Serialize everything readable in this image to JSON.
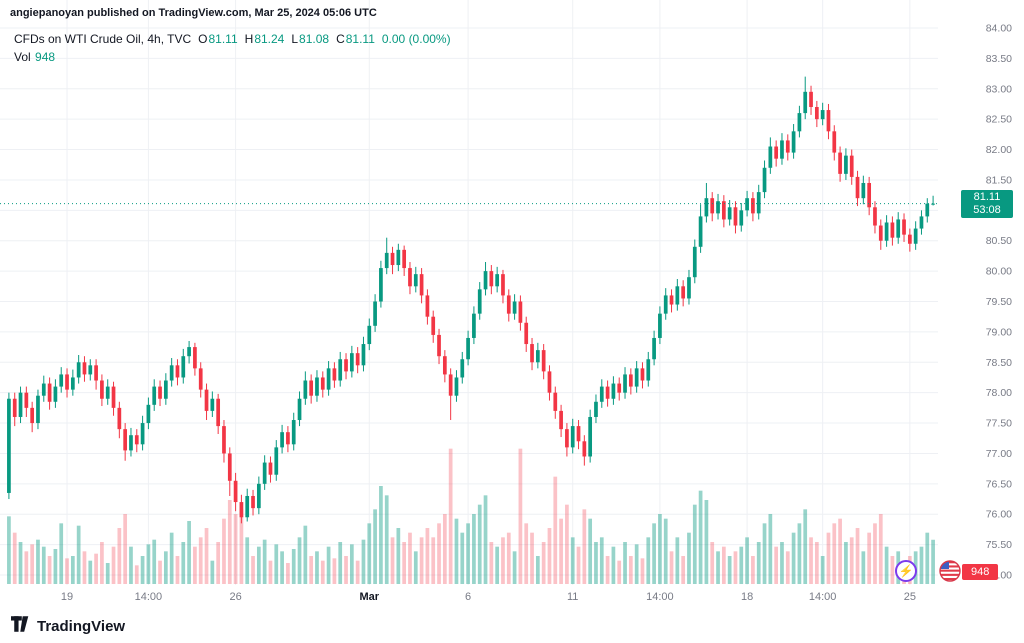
{
  "attribution": "angiepanoyan published on TradingView.com, Mar 25, 2024 05:06 UTC",
  "legend": {
    "title": "CFDs on WTI Crude Oil, 4h, TVC",
    "o_label": "O",
    "o_value": "81.11",
    "h_label": "H",
    "h_value": "81.24",
    "l_label": "L",
    "l_value": "81.08",
    "c_label": "C",
    "c_value": "81.11",
    "change": "0.00 (0.00%)",
    "vol_label": "Vol",
    "vol_value": "948"
  },
  "price_badge": {
    "price": "81.11",
    "countdown": "53:08"
  },
  "volume_badge": {
    "value": "948"
  },
  "footer": {
    "brand": "TradingView"
  },
  "icons": {
    "boost": "lightning-bolt",
    "flag": "us-flag-circle"
  },
  "colors": {
    "up": "#089981",
    "down": "#f23645",
    "text": "#131722",
    "axis_text": "#787b86",
    "grid": "#eef0f4",
    "purple": "#7c3aed",
    "badge_red": "#f23645"
  },
  "chart_data": {
    "type": "candlestick",
    "symbol": "CFDs on WTI Crude Oil",
    "interval": "4h",
    "exchange": "TVC",
    "last_price": 81.11,
    "countdown": "53:08",
    "last_volume": 948,
    "ylim": [
      75.0,
      84.0
    ],
    "price_axis_labels": [
      "84.00",
      "83.50",
      "83.00",
      "82.50",
      "82.00",
      "81.50",
      "81.00",
      "80.50",
      "80.00",
      "79.50",
      "79.00",
      "78.50",
      "78.00",
      "77.50",
      "77.00",
      "76.50",
      "76.00",
      "75.50",
      "75.00"
    ],
    "time_axis": [
      {
        "label": "19",
        "index": 10
      },
      {
        "label": "14:00",
        "index": 24
      },
      {
        "label": "26",
        "index": 39
      },
      {
        "label": "Mar",
        "index": 62,
        "bold": true
      },
      {
        "label": "6",
        "index": 79
      },
      {
        "label": "11",
        "index": 97
      },
      {
        "label": "14:00",
        "index": 112
      },
      {
        "label": "18",
        "index": 127
      },
      {
        "label": "14:00",
        "index": 140
      },
      {
        "label": "25",
        "index": 155
      }
    ],
    "up_color": "#089981",
    "down_color": "#f23645",
    "volume_up_color": "rgba(8,153,129,0.42)",
    "volume_down_color": "rgba(242,54,69,0.30)",
    "candles": [
      [
        76.35,
        78.0,
        76.25,
        77.9,
        1450
      ],
      [
        77.9,
        78.0,
        77.45,
        77.6,
        1100
      ],
      [
        77.6,
        78.1,
        77.5,
        78.0,
        900
      ],
      [
        78.0,
        78.1,
        77.6,
        77.75,
        700
      ],
      [
        77.75,
        77.85,
        77.35,
        77.5,
        850
      ],
      [
        77.5,
        78.05,
        77.4,
        77.95,
        950
      ],
      [
        77.95,
        78.28,
        77.85,
        78.15,
        800
      ],
      [
        78.15,
        78.25,
        77.72,
        77.85,
        600
      ],
      [
        77.85,
        78.22,
        77.75,
        78.1,
        750
      ],
      [
        78.1,
        78.42,
        78.0,
        78.3,
        1300
      ],
      [
        78.3,
        78.4,
        77.92,
        78.05,
        550
      ],
      [
        78.05,
        78.38,
        77.95,
        78.25,
        600
      ],
      [
        78.25,
        78.62,
        78.15,
        78.5,
        1250
      ],
      [
        78.5,
        78.6,
        78.18,
        78.3,
        700
      ],
      [
        78.3,
        78.55,
        78.2,
        78.45,
        500
      ],
      [
        78.45,
        78.55,
        78.05,
        78.2,
        650
      ],
      [
        78.2,
        78.3,
        77.78,
        77.9,
        900
      ],
      [
        77.9,
        78.22,
        77.8,
        78.1,
        450
      ],
      [
        78.1,
        78.18,
        77.62,
        77.75,
        800
      ],
      [
        77.75,
        77.85,
        77.25,
        77.4,
        1200
      ],
      [
        77.4,
        77.5,
        76.88,
        77.05,
        1500
      ],
      [
        77.05,
        77.42,
        76.95,
        77.3,
        800
      ],
      [
        77.3,
        77.4,
        77.02,
        77.15,
        400
      ],
      [
        77.15,
        77.62,
        77.05,
        77.5,
        600
      ],
      [
        77.5,
        77.92,
        77.4,
        77.8,
        850
      ],
      [
        77.8,
        78.22,
        77.7,
        78.1,
        950
      ],
      [
        78.1,
        78.2,
        77.78,
        77.9,
        500
      ],
      [
        77.9,
        78.32,
        77.8,
        78.2,
        700
      ],
      [
        78.2,
        78.57,
        78.1,
        78.45,
        1100
      ],
      [
        78.45,
        78.55,
        78.12,
        78.25,
        600
      ],
      [
        78.25,
        78.72,
        78.15,
        78.6,
        900
      ],
      [
        78.6,
        78.85,
        78.48,
        78.75,
        1350
      ],
      [
        78.75,
        78.82,
        78.28,
        78.4,
        800
      ],
      [
        78.4,
        78.5,
        77.92,
        78.05,
        1000
      ],
      [
        78.05,
        78.15,
        77.55,
        77.7,
        1200
      ],
      [
        77.7,
        78.02,
        77.6,
        77.9,
        500
      ],
      [
        77.9,
        77.98,
        77.32,
        77.45,
        900
      ],
      [
        77.45,
        77.55,
        76.85,
        77.0,
        1400
      ],
      [
        77.0,
        77.1,
        76.3,
        76.55,
        1800
      ],
      [
        76.55,
        76.68,
        76.05,
        76.2,
        1500
      ],
      [
        76.2,
        76.32,
        75.85,
        75.95,
        1600
      ],
      [
        75.95,
        76.42,
        75.88,
        76.3,
        1000
      ],
      [
        76.3,
        76.4,
        75.98,
        76.1,
        600
      ],
      [
        76.1,
        76.62,
        76.0,
        76.5,
        800
      ],
      [
        76.5,
        76.97,
        76.4,
        76.85,
        950
      ],
      [
        76.85,
        76.95,
        76.52,
        76.65,
        500
      ],
      [
        76.65,
        77.22,
        76.55,
        77.1,
        850
      ],
      [
        77.1,
        77.47,
        77.0,
        77.35,
        700
      ],
      [
        77.35,
        77.45,
        77.02,
        77.15,
        450
      ],
      [
        77.15,
        77.67,
        77.05,
        77.55,
        750
      ],
      [
        77.55,
        78.02,
        77.45,
        77.9,
        1000
      ],
      [
        77.9,
        78.35,
        77.8,
        78.2,
        1250
      ],
      [
        78.2,
        78.3,
        77.82,
        77.95,
        600
      ],
      [
        77.95,
        78.37,
        77.85,
        78.25,
        700
      ],
      [
        78.25,
        78.35,
        77.92,
        78.05,
        500
      ],
      [
        78.05,
        78.52,
        77.95,
        78.4,
        800
      ],
      [
        78.4,
        78.5,
        78.08,
        78.2,
        550
      ],
      [
        78.2,
        78.67,
        78.1,
        78.55,
        900
      ],
      [
        78.55,
        78.65,
        78.22,
        78.35,
        600
      ],
      [
        78.35,
        78.77,
        78.25,
        78.65,
        850
      ],
      [
        78.65,
        78.75,
        78.32,
        78.45,
        500
      ],
      [
        78.45,
        78.92,
        78.35,
        78.8,
        950
      ],
      [
        78.8,
        79.22,
        78.7,
        79.1,
        1300
      ],
      [
        79.1,
        79.62,
        79.0,
        79.5,
        1600
      ],
      [
        79.5,
        80.17,
        79.4,
        80.05,
        2100
      ],
      [
        80.05,
        80.55,
        79.95,
        80.3,
        1900
      ],
      [
        80.3,
        80.4,
        79.95,
        80.1,
        1000
      ],
      [
        80.1,
        80.45,
        80.0,
        80.35,
        1200
      ],
      [
        80.35,
        80.42,
        79.92,
        80.05,
        900
      ],
      [
        80.05,
        80.15,
        79.62,
        79.75,
        1100
      ],
      [
        79.75,
        80.07,
        79.65,
        79.95,
        700
      ],
      [
        79.95,
        80.05,
        79.47,
        79.6,
        1000
      ],
      [
        79.6,
        79.7,
        79.12,
        79.25,
        1200
      ],
      [
        79.25,
        79.35,
        78.82,
        78.95,
        1000
      ],
      [
        78.95,
        79.05,
        78.47,
        78.6,
        1300
      ],
      [
        78.6,
        78.7,
        78.17,
        78.3,
        1500
      ],
      [
        78.3,
        78.4,
        77.55,
        77.95,
        2900
      ],
      [
        77.95,
        78.37,
        77.85,
        78.25,
        1400
      ],
      [
        78.25,
        78.67,
        78.15,
        78.55,
        1100
      ],
      [
        78.55,
        79.02,
        78.45,
        78.9,
        1300
      ],
      [
        78.9,
        79.42,
        78.8,
        79.3,
        1500
      ],
      [
        79.3,
        79.82,
        79.2,
        79.7,
        1700
      ],
      [
        79.7,
        80.15,
        79.6,
        80.0,
        1900
      ],
      [
        80.0,
        80.1,
        79.62,
        79.75,
        900
      ],
      [
        79.75,
        80.07,
        79.65,
        79.95,
        800
      ],
      [
        79.95,
        80.02,
        79.47,
        79.6,
        1000
      ],
      [
        79.6,
        79.7,
        79.17,
        79.3,
        1100
      ],
      [
        79.3,
        79.62,
        79.2,
        79.5,
        700
      ],
      [
        79.5,
        79.6,
        79.02,
        79.15,
        2900
      ],
      [
        79.15,
        79.25,
        78.67,
        78.8,
        1300
      ],
      [
        78.8,
        78.9,
        78.37,
        78.5,
        1100
      ],
      [
        78.5,
        78.82,
        78.4,
        78.7,
        600
      ],
      [
        78.7,
        78.8,
        78.22,
        78.35,
        900
      ],
      [
        78.35,
        78.45,
        77.87,
        78.0,
        1200
      ],
      [
        78.0,
        78.1,
        77.57,
        77.7,
        2300
      ],
      [
        77.7,
        77.8,
        77.27,
        77.4,
        1400
      ],
      [
        77.4,
        77.5,
        76.95,
        77.1,
        1700
      ],
      [
        77.1,
        77.57,
        77.0,
        77.45,
        1000
      ],
      [
        77.45,
        77.55,
        77.07,
        77.2,
        800
      ],
      [
        77.2,
        77.3,
        76.8,
        76.95,
        1600
      ],
      [
        76.95,
        77.72,
        76.85,
        77.6,
        1400
      ],
      [
        77.6,
        77.97,
        77.5,
        77.85,
        900
      ],
      [
        77.85,
        78.22,
        77.75,
        78.1,
        1000
      ],
      [
        78.1,
        78.2,
        77.77,
        77.9,
        600
      ],
      [
        77.9,
        78.27,
        77.8,
        78.15,
        800
      ],
      [
        78.15,
        78.25,
        77.87,
        78.0,
        500
      ],
      [
        78.0,
        78.42,
        77.9,
        78.3,
        900
      ],
      [
        78.3,
        78.4,
        77.97,
        78.1,
        600
      ],
      [
        78.1,
        78.52,
        78.0,
        78.4,
        850
      ],
      [
        78.4,
        78.5,
        78.07,
        78.2,
        550
      ],
      [
        78.2,
        78.67,
        78.1,
        78.55,
        1000
      ],
      [
        78.55,
        79.02,
        78.45,
        78.9,
        1300
      ],
      [
        78.9,
        79.42,
        78.8,
        79.3,
        1500
      ],
      [
        79.3,
        79.72,
        79.2,
        79.6,
        1400
      ],
      [
        79.6,
        79.7,
        79.32,
        79.45,
        700
      ],
      [
        79.45,
        79.87,
        79.35,
        79.75,
        1000
      ],
      [
        79.75,
        79.85,
        79.42,
        79.55,
        600
      ],
      [
        79.55,
        80.02,
        79.45,
        79.9,
        1100
      ],
      [
        79.9,
        80.52,
        79.8,
        80.4,
        1700
      ],
      [
        80.4,
        81.1,
        80.3,
        80.9,
        2000
      ],
      [
        80.9,
        81.45,
        80.8,
        81.2,
        1800
      ],
      [
        81.2,
        81.3,
        80.82,
        80.95,
        900
      ],
      [
        80.95,
        81.27,
        80.85,
        81.15,
        700
      ],
      [
        81.15,
        81.25,
        80.72,
        80.85,
        800
      ],
      [
        80.85,
        81.17,
        80.75,
        81.05,
        600
      ],
      [
        81.05,
        81.15,
        80.62,
        80.75,
        700
      ],
      [
        80.75,
        81.12,
        80.65,
        81.0,
        800
      ],
      [
        81.0,
        81.32,
        80.9,
        81.2,
        1000
      ],
      [
        81.2,
        81.3,
        80.82,
        80.95,
        600
      ],
      [
        80.95,
        81.42,
        80.85,
        81.3,
        900
      ],
      [
        81.3,
        81.82,
        81.2,
        81.7,
        1300
      ],
      [
        81.7,
        82.2,
        81.6,
        82.05,
        1500
      ],
      [
        82.05,
        82.15,
        81.72,
        81.85,
        800
      ],
      [
        81.85,
        82.27,
        81.75,
        82.15,
        900
      ],
      [
        82.15,
        82.25,
        81.82,
        81.95,
        700
      ],
      [
        81.95,
        82.42,
        81.85,
        82.3,
        1100
      ],
      [
        82.3,
        82.72,
        82.2,
        82.6,
        1300
      ],
      [
        82.6,
        83.2,
        82.5,
        82.95,
        1600
      ],
      [
        82.95,
        83.05,
        82.57,
        82.7,
        1000
      ],
      [
        82.7,
        82.8,
        82.37,
        82.5,
        900
      ],
      [
        82.5,
        82.77,
        82.4,
        82.65,
        600
      ],
      [
        82.65,
        82.75,
        82.17,
        82.3,
        1100
      ],
      [
        82.3,
        82.4,
        81.82,
        81.95,
        1300
      ],
      [
        81.95,
        82.05,
        81.47,
        81.6,
        1400
      ],
      [
        81.6,
        82.02,
        81.5,
        81.9,
        900
      ],
      [
        81.9,
        82.0,
        81.42,
        81.55,
        1000
      ],
      [
        81.55,
        81.65,
        81.07,
        81.2,
        1200
      ],
      [
        81.2,
        81.57,
        81.1,
        81.45,
        700
      ],
      [
        81.45,
        81.55,
        80.92,
        81.05,
        1100
      ],
      [
        81.05,
        81.15,
        80.62,
        80.75,
        1300
      ],
      [
        80.75,
        80.85,
        80.35,
        80.5,
        1500
      ],
      [
        80.5,
        80.92,
        80.4,
        80.8,
        800
      ],
      [
        80.8,
        80.9,
        80.42,
        80.55,
        600
      ],
      [
        80.55,
        80.97,
        80.45,
        80.85,
        700
      ],
      [
        80.85,
        80.95,
        80.48,
        80.6,
        500
      ],
      [
        80.6,
        80.7,
        80.32,
        80.45,
        600
      ],
      [
        80.45,
        80.82,
        80.35,
        80.7,
        700
      ],
      [
        80.7,
        81.0,
        80.6,
        80.9,
        800
      ],
      [
        80.9,
        81.2,
        80.8,
        81.11,
        1100
      ],
      [
        81.11,
        81.24,
        81.08,
        81.11,
        948
      ]
    ]
  }
}
